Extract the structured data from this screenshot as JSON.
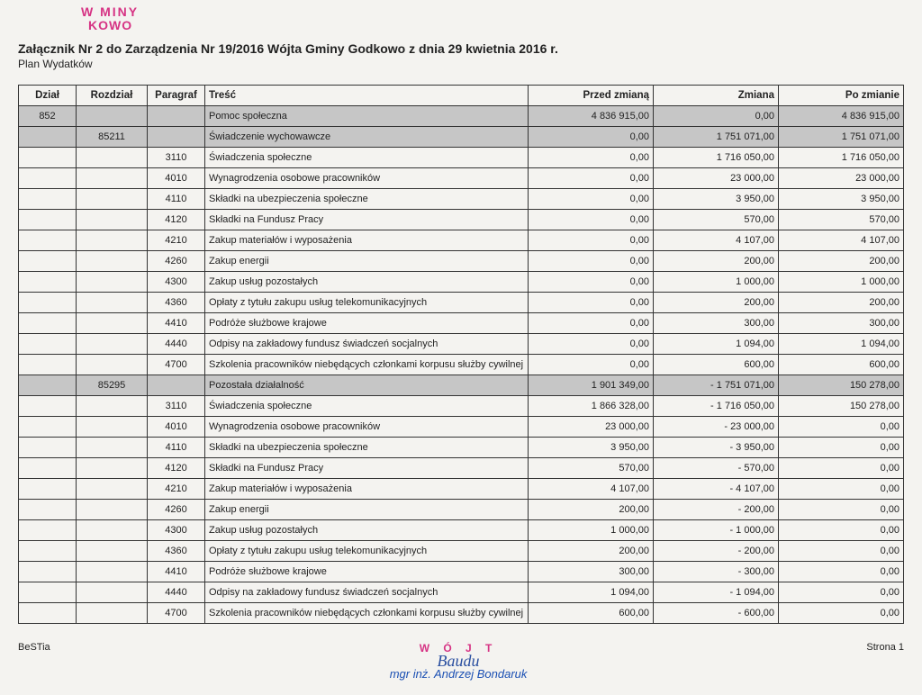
{
  "stamp": {
    "l1": "W    MINY",
    "l2": "KOWO",
    "l3": ""
  },
  "header": {
    "title": "Załącznik Nr 2 do Zarządzenia Nr 19/2016 Wójta Gminy Godkowo z dnia 29 kwietnia 2016 r.",
    "subtitle": "Plan Wydatków"
  },
  "columns": [
    "Dział",
    "Rozdział",
    "Paragraf",
    "Treść",
    "Przed zmianą",
    "Zmiana",
    "Po zmianie"
  ],
  "rows": [
    {
      "shade": true,
      "dzial": "852",
      "rozdzial": "",
      "paragraf": "",
      "tresc": "Pomoc społeczna",
      "przed": "4 836 915,00",
      "zmiana": "0,00",
      "po": "4 836 915,00"
    },
    {
      "shade": true,
      "dzial": "",
      "rozdzial": "85211",
      "paragraf": "",
      "tresc": "Świadczenie wychowawcze",
      "przed": "0,00",
      "zmiana": "1 751 071,00",
      "po": "1 751 071,00"
    },
    {
      "shade": false,
      "dzial": "",
      "rozdzial": "",
      "paragraf": "3110",
      "tresc": "Świadczenia społeczne",
      "przed": "0,00",
      "zmiana": "1 716 050,00",
      "po": "1 716 050,00"
    },
    {
      "shade": false,
      "dzial": "",
      "rozdzial": "",
      "paragraf": "4010",
      "tresc": "Wynagrodzenia osobowe pracowników",
      "przed": "0,00",
      "zmiana": "23 000,00",
      "po": "23 000,00"
    },
    {
      "shade": false,
      "dzial": "",
      "rozdzial": "",
      "paragraf": "4110",
      "tresc": "Składki na ubezpieczenia społeczne",
      "przed": "0,00",
      "zmiana": "3 950,00",
      "po": "3 950,00"
    },
    {
      "shade": false,
      "dzial": "",
      "rozdzial": "",
      "paragraf": "4120",
      "tresc": "Składki na Fundusz Pracy",
      "przed": "0,00",
      "zmiana": "570,00",
      "po": "570,00"
    },
    {
      "shade": false,
      "dzial": "",
      "rozdzial": "",
      "paragraf": "4210",
      "tresc": "Zakup materiałów i wyposażenia",
      "przed": "0,00",
      "zmiana": "4 107,00",
      "po": "4 107,00"
    },
    {
      "shade": false,
      "dzial": "",
      "rozdzial": "",
      "paragraf": "4260",
      "tresc": "Zakup energii",
      "przed": "0,00",
      "zmiana": "200,00",
      "po": "200,00"
    },
    {
      "shade": false,
      "dzial": "",
      "rozdzial": "",
      "paragraf": "4300",
      "tresc": "Zakup usług pozostałych",
      "przed": "0,00",
      "zmiana": "1 000,00",
      "po": "1 000,00"
    },
    {
      "shade": false,
      "dzial": "",
      "rozdzial": "",
      "paragraf": "4360",
      "tresc": "Opłaty z tytułu zakupu usług telekomunikacyjnych",
      "przed": "0,00",
      "zmiana": "200,00",
      "po": "200,00"
    },
    {
      "shade": false,
      "dzial": "",
      "rozdzial": "",
      "paragraf": "4410",
      "tresc": "Podróże służbowe krajowe",
      "przed": "0,00",
      "zmiana": "300,00",
      "po": "300,00"
    },
    {
      "shade": false,
      "dzial": "",
      "rozdzial": "",
      "paragraf": "4440",
      "tresc": "Odpisy na zakładowy fundusz świadczeń socjalnych",
      "przed": "0,00",
      "zmiana": "1 094,00",
      "po": "1 094,00"
    },
    {
      "shade": false,
      "dzial": "",
      "rozdzial": "",
      "paragraf": "4700",
      "tresc": "Szkolenia pracowników niebędących członkami korpusu służby cywilnej",
      "przed": "0,00",
      "zmiana": "600,00",
      "po": "600,00"
    },
    {
      "shade": true,
      "dzial": "",
      "rozdzial": "85295",
      "paragraf": "",
      "tresc": "Pozostała działalność",
      "przed": "1 901 349,00",
      "zmiana": "- 1 751 071,00",
      "po": "150 278,00"
    },
    {
      "shade": false,
      "dzial": "",
      "rozdzial": "",
      "paragraf": "3110",
      "tresc": "Świadczenia społeczne",
      "przed": "1 866 328,00",
      "zmiana": "- 1 716 050,00",
      "po": "150 278,00"
    },
    {
      "shade": false,
      "dzial": "",
      "rozdzial": "",
      "paragraf": "4010",
      "tresc": "Wynagrodzenia osobowe pracowników",
      "przed": "23 000,00",
      "zmiana": "- 23 000,00",
      "po": "0,00"
    },
    {
      "shade": false,
      "dzial": "",
      "rozdzial": "",
      "paragraf": "4110",
      "tresc": "Składki na ubezpieczenia społeczne",
      "przed": "3 950,00",
      "zmiana": "- 3 950,00",
      "po": "0,00"
    },
    {
      "shade": false,
      "dzial": "",
      "rozdzial": "",
      "paragraf": "4120",
      "tresc": "Składki na Fundusz Pracy",
      "przed": "570,00",
      "zmiana": "- 570,00",
      "po": "0,00"
    },
    {
      "shade": false,
      "dzial": "",
      "rozdzial": "",
      "paragraf": "4210",
      "tresc": "Zakup materiałów i wyposażenia",
      "przed": "4 107,00",
      "zmiana": "- 4 107,00",
      "po": "0,00"
    },
    {
      "shade": false,
      "dzial": "",
      "rozdzial": "",
      "paragraf": "4260",
      "tresc": "Zakup energii",
      "przed": "200,00",
      "zmiana": "- 200,00",
      "po": "0,00"
    },
    {
      "shade": false,
      "dzial": "",
      "rozdzial": "",
      "paragraf": "4300",
      "tresc": "Zakup usług pozostałych",
      "przed": "1 000,00",
      "zmiana": "- 1 000,00",
      "po": "0,00"
    },
    {
      "shade": false,
      "dzial": "",
      "rozdzial": "",
      "paragraf": "4360",
      "tresc": "Opłaty z tytułu zakupu usług telekomunikacyjnych",
      "przed": "200,00",
      "zmiana": "- 200,00",
      "po": "0,00"
    },
    {
      "shade": false,
      "dzial": "",
      "rozdzial": "",
      "paragraf": "4410",
      "tresc": "Podróże służbowe krajowe",
      "przed": "300,00",
      "zmiana": "- 300,00",
      "po": "0,00"
    },
    {
      "shade": false,
      "dzial": "",
      "rozdzial": "",
      "paragraf": "4440",
      "tresc": "Odpisy na zakładowy fundusz świadczeń socjalnych",
      "przed": "1 094,00",
      "zmiana": "- 1 094,00",
      "po": "0,00"
    },
    {
      "shade": false,
      "dzial": "",
      "rozdzial": "",
      "paragraf": "4700",
      "tresc": "Szkolenia pracowników niebędących członkami korpusu służby cywilnej",
      "przed": "600,00",
      "zmiana": "- 600,00",
      "po": "0,00"
    }
  ],
  "footer": {
    "left": "BeSTia",
    "right": "Strona 1",
    "sig_top": "W Ó J T",
    "sig_scribble": "Baudu",
    "sig_name": "mgr inż. Andrzej Bondaruk"
  }
}
